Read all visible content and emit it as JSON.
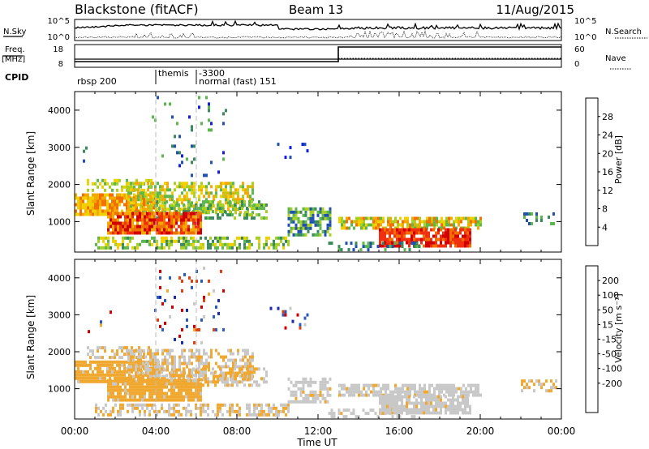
{
  "header": {
    "station": "Blackstone (fitACF)",
    "beam": "Beam 13",
    "date": "11/Aug/2015"
  },
  "noise_panel": {
    "left_label": "N.Sky",
    "left_ticks": [
      "10^5",
      "10^0"
    ],
    "right_ticks": [
      "10^5",
      "10^0"
    ],
    "right_label": "N.Search"
  },
  "freq_panel": {
    "left_label_1": "Freq.",
    "left_label_2": "[MHz]",
    "left_ticks": [
      "18",
      "8"
    ],
    "right_ticks": [
      "60",
      "0"
    ],
    "right_label": "Nave"
  },
  "cpid_panel": {
    "label": "CPID",
    "segments": [
      {
        "start_hour": 0.0,
        "line1": "",
        "line2": "rbsp 200"
      },
      {
        "start_hour": 4.0,
        "line1": "themis",
        "line2": ""
      },
      {
        "start_hour": 6.0,
        "line1": "-3300",
        "line2": "normal (fast) 151"
      }
    ]
  },
  "colors": {
    "power": [
      "#1020e0",
      "#2050b0",
      "#3b8a5c",
      "#5cb84c",
      "#a8d020",
      "#f0d000",
      "#f5a800",
      "#f07000",
      "#f03010",
      "#d00000"
    ],
    "velocity": [
      "#1a2ab0",
      "#2a5cc0",
      "#2a8a6a",
      "#70c040",
      "#c8c8c8",
      "#c8c8c8",
      "#f0a830",
      "#f07010",
      "#e04010",
      "#d00000"
    ]
  },
  "chart_data": [
    {
      "type": "heatmap",
      "name": "power",
      "xlabel": "",
      "ylabel": "Slant Range [km]",
      "x_range_hours": [
        0,
        24
      ],
      "ylim": [
        180,
        4500
      ],
      "y_ticks": [
        1000,
        2000,
        3000,
        4000
      ],
      "colorbar": {
        "label": "Power [dB]",
        "range": [
          0,
          32
        ],
        "ticks": [
          4,
          8,
          12,
          16,
          20,
          24,
          28
        ]
      }
    },
    {
      "type": "heatmap",
      "name": "velocity",
      "xlabel": "Time UT",
      "ylabel": "Slant Range [km]",
      "x_range_hours": [
        0,
        24
      ],
      "ylim": [
        180,
        4500
      ],
      "y_ticks": [
        1000,
        2000,
        3000,
        4000
      ],
      "x_tick_labels": [
        "00:00",
        "04:00",
        "08:00",
        "12:00",
        "16:00",
        "20:00",
        "00:00"
      ],
      "colorbar": {
        "label": "Velocity [m s⁻¹]",
        "ticks": [
          "200",
          "100",
          "50",
          "15",
          "-15",
          "-50",
          "-100",
          "-200"
        ]
      }
    }
  ]
}
